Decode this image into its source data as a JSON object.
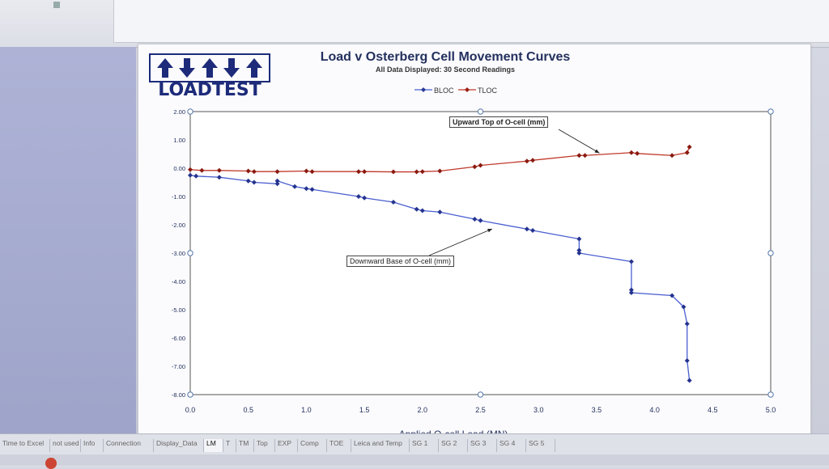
{
  "logo": {
    "text": "LOADTEST"
  },
  "chart_data": {
    "type": "line",
    "title": "Load v Osterberg Cell Movement Curves",
    "subtitle": "All Data Displayed:  30 Second Readings",
    "xlabel": "Applied O-cell Load (MN)",
    "ylabel": "",
    "xlim": [
      0.0,
      5.0
    ],
    "ylim": [
      -8.0,
      2.0
    ],
    "x_ticks": [
      "0.0",
      "0.5",
      "1.0",
      "1.5",
      "2.0",
      "2.5",
      "3.0",
      "3.5",
      "4.0",
      "4.5",
      "5.0"
    ],
    "y_ticks": [
      "2.00",
      "1.00",
      "0.00",
      "-1.00",
      "-2.00",
      "-3.00",
      "-4.00",
      "-5.00",
      "-6.00",
      "-7.00",
      "-8.00"
    ],
    "legend_position": "top-center",
    "grid": true,
    "annotations": [
      "Upward Top of O-cell (mm)",
      "Downward Base of O-cell (mm)"
    ],
    "series": [
      {
        "name": "BLOC",
        "color": "#4a5fcf",
        "x": [
          0.0,
          0.05,
          0.25,
          0.5,
          0.55,
          0.75,
          0.75,
          0.9,
          1.0,
          1.05,
          1.45,
          1.5,
          1.75,
          1.95,
          2.0,
          2.15,
          2.45,
          2.5,
          2.9,
          2.95,
          3.35,
          3.35,
          3.35,
          3.8,
          3.8,
          3.8,
          4.15,
          4.25,
          4.28,
          4.28,
          4.3
        ],
        "y": [
          -0.25,
          -0.28,
          -0.32,
          -0.45,
          -0.5,
          -0.55,
          -0.45,
          -0.65,
          -0.72,
          -0.75,
          -1.0,
          -1.05,
          -1.2,
          -1.45,
          -1.5,
          -1.55,
          -1.8,
          -1.85,
          -2.15,
          -2.2,
          -2.5,
          -2.9,
          -3.0,
          -3.3,
          -4.3,
          -4.4,
          -4.5,
          -4.9,
          -5.5,
          -6.8,
          -7.5
        ]
      },
      {
        "name": "TLOC",
        "color": "#c0392b",
        "x": [
          0.0,
          0.1,
          0.25,
          0.5,
          0.55,
          0.75,
          1.0,
          1.05,
          1.45,
          1.5,
          1.75,
          1.95,
          2.0,
          2.15,
          2.45,
          2.5,
          2.9,
          2.95,
          3.35,
          3.4,
          3.8,
          3.85,
          4.15,
          4.28,
          4.3
        ],
        "y": [
          -0.05,
          -0.08,
          -0.08,
          -0.1,
          -0.12,
          -0.12,
          -0.1,
          -0.12,
          -0.12,
          -0.12,
          -0.13,
          -0.13,
          -0.12,
          -0.1,
          0.05,
          0.1,
          0.25,
          0.28,
          0.45,
          0.45,
          0.55,
          0.52,
          0.45,
          0.55,
          0.75
        ]
      }
    ]
  },
  "sheet_tabs": [
    {
      "label": "Time to Excel",
      "active": false
    },
    {
      "label": "not used",
      "active": false
    },
    {
      "label": "Info",
      "active": false
    },
    {
      "label": "Connection",
      "active": false
    },
    {
      "label": "Display_Data",
      "active": false
    },
    {
      "label": "LM",
      "active": true
    },
    {
      "label": "T",
      "active": false
    },
    {
      "label": "TM",
      "active": false
    },
    {
      "label": "Top",
      "active": false
    },
    {
      "label": "EXP",
      "active": false
    },
    {
      "label": "Comp",
      "active": false
    },
    {
      "label": "TOE",
      "active": false
    },
    {
      "label": "Leica and Temp",
      "active": false
    },
    {
      "label": "SG 1",
      "active": false
    },
    {
      "label": "SG 2",
      "active": false
    },
    {
      "label": "SG 3",
      "active": false
    },
    {
      "label": "SG 4",
      "active": false
    },
    {
      "label": "SG 5",
      "active": false
    }
  ]
}
